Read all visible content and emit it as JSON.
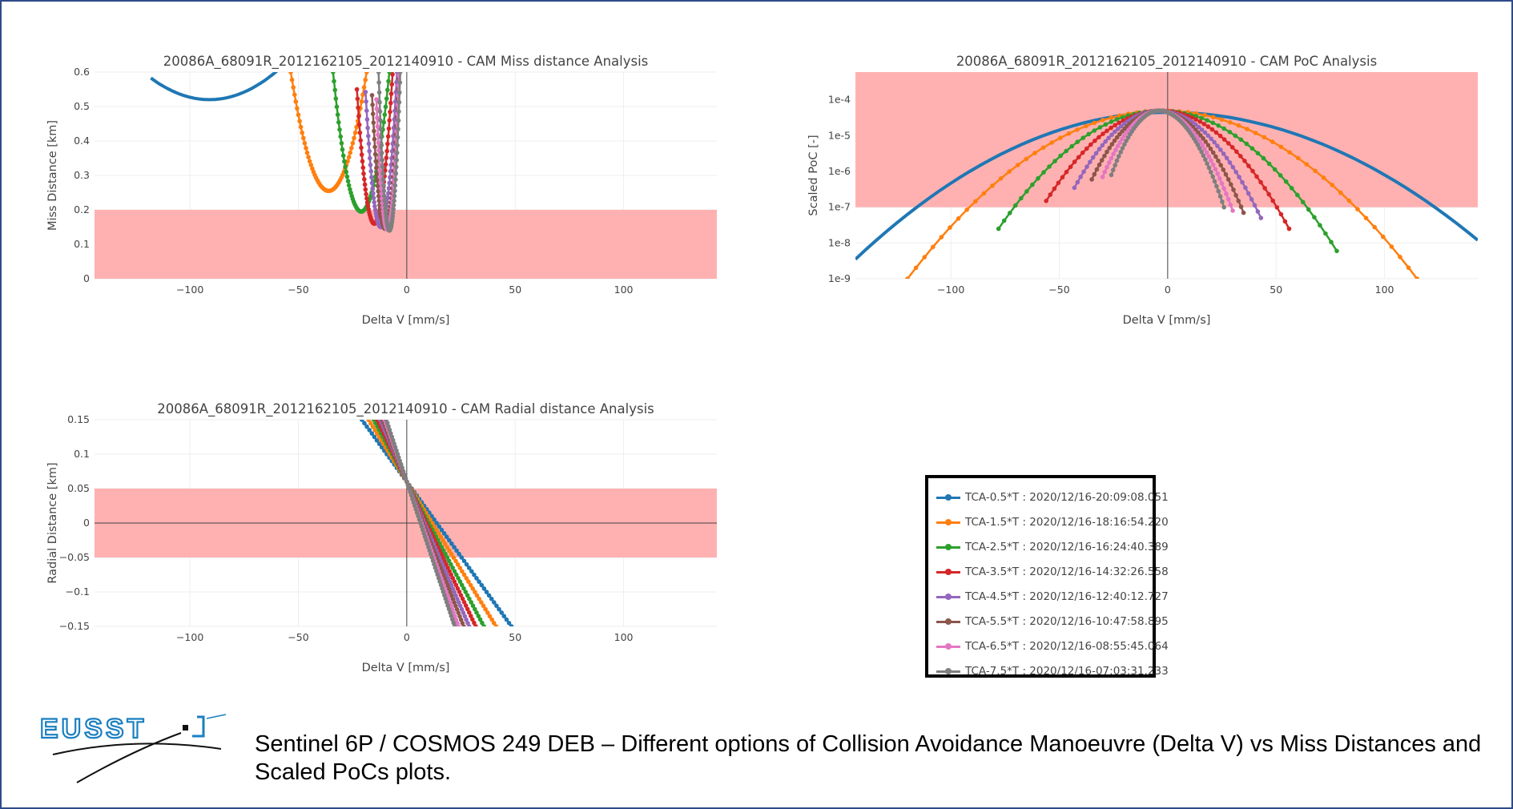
{
  "colors": {
    "band": "#ffb1b1",
    "series": [
      "#1f77b4",
      "#ff7f0e",
      "#2ca02c",
      "#d62728",
      "#9467bd",
      "#8c564b",
      "#e377c2",
      "#7f7f7f"
    ]
  },
  "legend": {
    "items": [
      "TCA-0.5*T : 2020/12/16-20:09:08.051",
      "TCA-1.5*T : 2020/12/16-18:16:54.220",
      "TCA-2.5*T : 2020/12/16-16:24:40.389",
      "TCA-3.5*T : 2020/12/16-14:32:26.558",
      "TCA-4.5*T : 2020/12/16-12:40:12.727",
      "TCA-5.5*T : 2020/12/16-10:47:58.895",
      "TCA-6.5*T : 2020/12/16-08:55:45.064",
      "TCA-7.5*T : 2020/12/16-07:03:31.233"
    ]
  },
  "logo_text": "EUSST",
  "caption": "Sentinel 6P / COSMOS 249 DEB – Different options of Collision Avoidance Manoeuvre (Delta V) vs Miss Distances and Scaled PoCs plots.",
  "chart_data": [
    {
      "id": "miss",
      "type": "line",
      "title": "20086A_68091R_2012162105_2012140910 - CAM Miss distance Analysis",
      "xlabel": "Delta V [mm/s]",
      "ylabel": "Miss Distance [km]",
      "xlim": [
        -144,
        143
      ],
      "ylim": [
        0,
        0.6
      ],
      "xticks": [
        -100,
        -50,
        0,
        50,
        100
      ],
      "yticks": [
        0,
        0.1,
        0.2,
        0.3,
        0.4,
        0.5,
        0.6
      ],
      "ytick_labels": [
        "0",
        "0.1",
        "0.2",
        "0.3",
        "0.4",
        "0.5",
        "0.6"
      ],
      "grid": true,
      "band": [
        0,
        0.2
      ],
      "series_model": "parabola: y = y_min + k*(x - x_min)^2",
      "series": [
        {
          "x_min": -91,
          "y_min": 0.52,
          "x_range": [
            -118,
            -57
          ]
        },
        {
          "x_min": -36,
          "y_min": 0.255,
          "x_range": [
            -53.5,
            -18.5
          ]
        },
        {
          "x_min": -21,
          "y_min": 0.195,
          "x_range": [
            -34,
            -8
          ]
        },
        {
          "x_min": -15,
          "y_min": 0.16,
          "x_range": [
            -23,
            -6
          ]
        },
        {
          "x_min": -12,
          "y_min": 0.15,
          "x_range": [
            -19,
            -4
          ]
        },
        {
          "x_min": -10,
          "y_min": 0.145,
          "x_range": [
            -16,
            -3
          ]
        },
        {
          "x_min": -9,
          "y_min": 0.143,
          "x_range": [
            -14,
            -3
          ]
        },
        {
          "x_min": -8,
          "y_min": 0.14,
          "x_range": [
            -13,
            -3
          ]
        }
      ]
    },
    {
      "id": "poc",
      "type": "line",
      "title": "20086A_68091R_2012162105_2012140910 - CAM PoC Analysis",
      "xlabel": "Delta V [mm/s]",
      "ylabel": "Scaled PoC [-]",
      "log_y": true,
      "xlim": [
        -144,
        143
      ],
      "ylim": [
        1e-09,
        0.0006
      ],
      "xticks": [
        -100,
        -50,
        0,
        50,
        100
      ],
      "yticks": [
        1e-09,
        1e-08,
        1e-07,
        1e-06,
        1e-05,
        0.0001
      ],
      "ytick_labels": [
        "1e-9",
        "1e-8",
        "1e-7",
        "1e-6",
        "1e-5",
        "1e-4"
      ],
      "grid": true,
      "band": [
        1e-07,
        0.0006
      ],
      "series_model": "log10 gaussian peak at x_peak; endpoints listed",
      "series": [
        {
          "x_peak": 0,
          "peak": 4.5e-05,
          "x_range": [
            -144,
            143
          ],
          "y_left": 3.5e-09,
          "y_right": 1.2e-08
        },
        {
          "x_peak": -2,
          "peak": 5e-05,
          "x_range": [
            -120,
            115
          ],
          "y_left": 1e-09,
          "y_right": 1e-09
        },
        {
          "x_peak": -3,
          "peak": 5e-05,
          "x_range": [
            -78,
            78
          ],
          "y_left": 2.5e-08,
          "y_right": 6e-09
        },
        {
          "x_peak": -3,
          "peak": 5e-05,
          "x_range": [
            -56,
            56
          ],
          "y_left": 1.5e-07,
          "y_right": 2.5e-08
        },
        {
          "x_peak": -4,
          "peak": 5e-05,
          "x_range": [
            -43,
            43
          ],
          "y_left": 3.5e-07,
          "y_right": 5e-08
        },
        {
          "x_peak": -4,
          "peak": 5e-05,
          "x_range": [
            -35,
            35
          ],
          "y_left": 6e-07,
          "y_right": 7e-08
        },
        {
          "x_peak": -4,
          "peak": 5e-05,
          "x_range": [
            -30,
            30
          ],
          "y_left": 7e-07,
          "y_right": 8e-08
        },
        {
          "x_peak": -4,
          "peak": 5e-05,
          "x_range": [
            -26,
            26
          ],
          "y_left": 8e-07,
          "y_right": 1e-07
        }
      ]
    },
    {
      "id": "radial",
      "type": "line",
      "title": "20086A_68091R_2012162105_2012140910 - CAM Radial distance Analysis",
      "xlabel": "Delta V [mm/s]",
      "ylabel": "Radial Distance [km]",
      "xlim": [
        -144,
        143
      ],
      "ylim": [
        -0.15,
        0.15
      ],
      "xticks": [
        -100,
        -50,
        0,
        50,
        100
      ],
      "yticks": [
        -0.15,
        -0.1,
        -0.05,
        0,
        0.05,
        0.1,
        0.15
      ],
      "ytick_labels": [
        "−0.15",
        "−0.1",
        "−0.05",
        "0",
        "0.05",
        "0.1",
        "0.15"
      ],
      "grid": true,
      "band": [
        -0.05,
        0.05
      ],
      "series_model": "straight line through (0, y0)",
      "series": [
        {
          "y0": 0.06,
          "slope": -0.00435,
          "x_range": [
            -20.7,
            48.3
          ]
        },
        {
          "y0": 0.06,
          "slope": -0.0051,
          "x_range": [
            -17.6,
            41.2
          ]
        },
        {
          "y0": 0.06,
          "slope": -0.0059,
          "x_range": [
            -15.3,
            35.6
          ]
        },
        {
          "y0": 0.06,
          "slope": -0.0066,
          "x_range": [
            -13.6,
            31.8
          ]
        },
        {
          "y0": 0.06,
          "slope": -0.0073,
          "x_range": [
            -12.3,
            28.8
          ]
        },
        {
          "y0": 0.06,
          "slope": -0.008,
          "x_range": [
            -11.3,
            26.3
          ]
        },
        {
          "y0": 0.06,
          "slope": -0.0088,
          "x_range": [
            -10.2,
            23.9
          ]
        },
        {
          "y0": 0.06,
          "slope": -0.0095,
          "x_range": [
            -9.5,
            22.1
          ]
        }
      ]
    }
  ]
}
